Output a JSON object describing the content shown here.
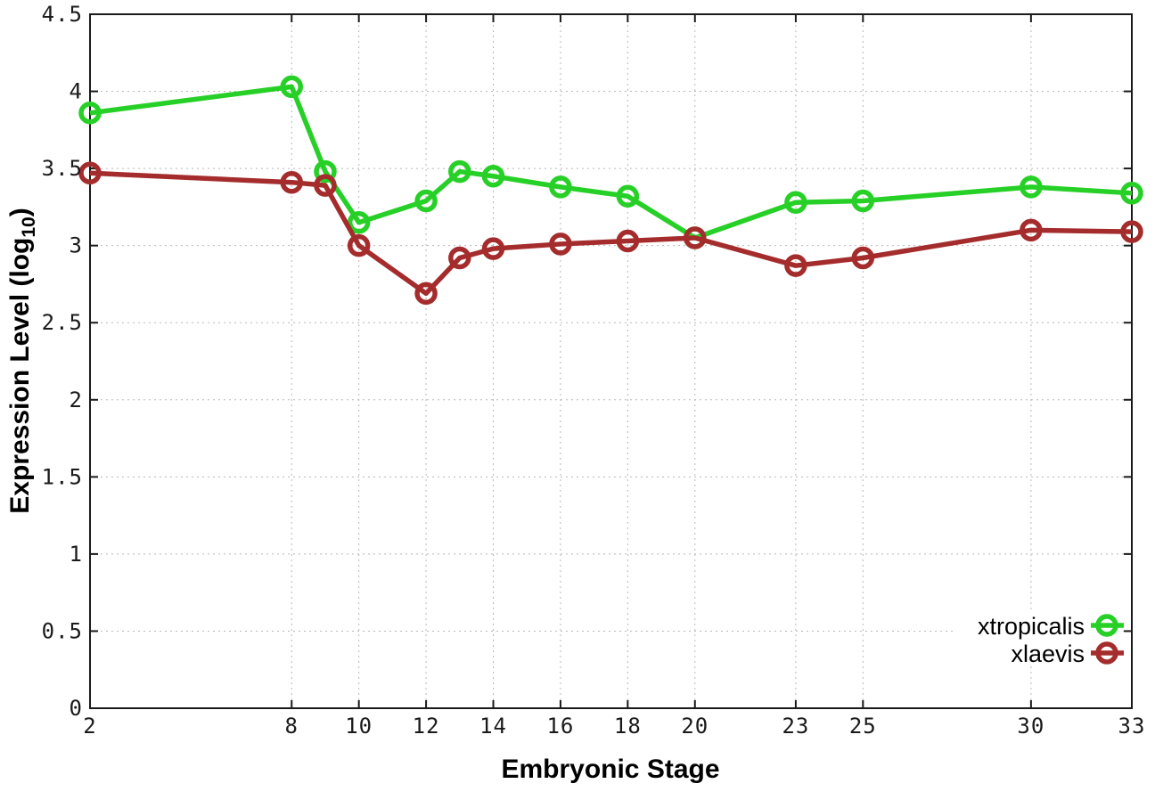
{
  "chart_data": {
    "type": "line",
    "title": "",
    "xlabel": "Embryonic Stage",
    "ylabel": {
      "prefix": "Expression Level (log",
      "subscript": "10",
      "suffix": ")"
    },
    "xlim": [
      2,
      33
    ],
    "ylim": [
      0,
      4.5
    ],
    "grid": true,
    "legend_position": "inside-bottom-right",
    "x_ticks": [
      2,
      8,
      10,
      12,
      14,
      16,
      18,
      20,
      23,
      25,
      30,
      33
    ],
    "x_tick_labels": [
      "2",
      "8",
      "10",
      "12",
      "14",
      "16",
      "18",
      "20",
      "23",
      "25",
      "30",
      "33"
    ],
    "y_ticks": [
      0,
      0.5,
      1,
      1.5,
      2,
      2.5,
      3,
      3.5,
      4,
      4.5
    ],
    "y_tick_labels": [
      "0",
      "0.5",
      "1",
      "1.5",
      "2",
      "2.5",
      "3",
      "3.5",
      "4",
      "4.5"
    ],
    "x": [
      2,
      8,
      9,
      10,
      12,
      13,
      14,
      16,
      18,
      20,
      23,
      25,
      30,
      33
    ],
    "series": [
      {
        "name": "xtropicalis",
        "color": "#26d026",
        "marker": "open-circle",
        "values": [
          3.86,
          4.03,
          3.48,
          3.15,
          3.29,
          3.48,
          3.45,
          3.38,
          3.32,
          3.05,
          3.28,
          3.29,
          3.38,
          3.34
        ]
      },
      {
        "name": "xlaevis",
        "color": "#a52c2c",
        "marker": "open-circle",
        "values": [
          3.47,
          3.41,
          3.39,
          3.0,
          2.69,
          2.92,
          2.98,
          3.01,
          3.03,
          3.05,
          2.87,
          2.92,
          3.1,
          3.09
        ]
      }
    ],
    "style": {
      "axis_color": "#1a1a1a",
      "grid_color": "#b8b8b8",
      "background": "#ffffff",
      "line_width": 5.5,
      "marker_radius": 10
    }
  }
}
